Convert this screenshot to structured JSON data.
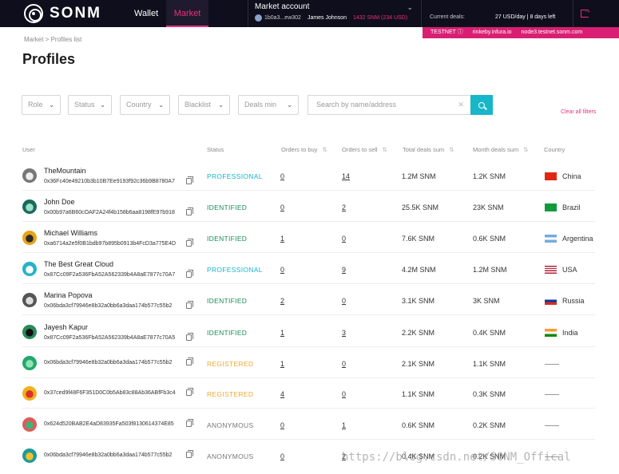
{
  "header": {
    "brand": "SONM",
    "nav": {
      "wallet": "Wallet",
      "market": "Market"
    },
    "account": {
      "title": "Market account",
      "address": "1b0a3...ew302",
      "name": "James Johnson",
      "balance": "1432 SNM (234 USD)"
    },
    "deals_label": "Current deals:",
    "deals_value": "27 USD/day  |  8 days left"
  },
  "testnet": {
    "label": "TESTNET ⓘ",
    "host1": "rinkeby.infura.io",
    "host2": "node3.testnet.sonm.com"
  },
  "breadcrumb": "Market  >  Profiles list",
  "page_title": "Profiles",
  "filters": {
    "role": "Role",
    "status": "Status",
    "country": "Country",
    "blacklist": "Blacklist",
    "deals_min": "Deals min",
    "search_placeholder": "Search by name/address",
    "clear_all": "Clear all filters"
  },
  "columns": {
    "user": "User",
    "status": "Status",
    "orders_buy": "Orders to buy",
    "orders_sell": "Orders to sell",
    "total_deals": "Total deals sum",
    "month_deals": "Month deals sum",
    "country": "Country"
  },
  "colors": {
    "accent": "#e8317a",
    "professional": "#17b6c9",
    "identified": "#1a8a5a",
    "registered": "#f0a830",
    "anonymous": "#777777"
  },
  "rows": [
    {
      "name": "TheMountain",
      "address": "0x36Fc40e49210b3b10B7Ee9193f92c36b9B8780A7",
      "status": "PROFESSIONAL",
      "orders_buy": "0",
      "orders_sell": "14",
      "total": "1.2M SNM",
      "month": "1.2K SNM",
      "country": "China",
      "flag": "china-flag-icon"
    },
    {
      "name": "John Doe",
      "address": "0x00b97a6B60cOAF2A24f4b158b6aa8198fE97b918",
      "status": "IDENTIFIED",
      "orders_buy": "0",
      "orders_sell": "2",
      "total": "25.5K SNM",
      "month": "23K SNM",
      "country": "Brazil",
      "flag": "brazil-flag-icon"
    },
    {
      "name": "Michael Williams",
      "address": "0xa6714a2e5f0B1bdb97b895b0913b4FcD3a775E4D",
      "status": "IDENTIFIED",
      "orders_buy": "1",
      "orders_sell": "0",
      "total": "7.6K SNM",
      "month": "0.6K SNM",
      "country": "Argentina",
      "flag": "argentina-flag-icon"
    },
    {
      "name": "The Best Great Cloud",
      "address": "0x87Cc09F2a536FbA52A562339b4A8aE7877c70A7",
      "status": "PROFESSIONAL",
      "orders_buy": "0",
      "orders_sell": "9",
      "total": "4.2M SNM",
      "month": "1.2M SNM",
      "country": "USA",
      "flag": "usa-flag-icon"
    },
    {
      "name": "Marina Popova",
      "address": "0x06bda3cf79946e8b32a0bb6a3daa174b577c55b2",
      "status": "IDENTIFIED",
      "orders_buy": "2",
      "orders_sell": "0",
      "total": "3.1K SNM",
      "month": "3K SNM",
      "country": "Russia",
      "flag": "russia-flag-icon"
    },
    {
      "name": "Jayesh Kapur",
      "address": "0x87Cc09F2a536FbA52A562339b4A8aE7877c70A5",
      "status": "IDENTIFIED",
      "orders_buy": "1",
      "orders_sell": "3",
      "total": "2.2K SNM",
      "month": "0.4K SNM",
      "country": "India",
      "flag": "india-flag-icon"
    },
    {
      "name": "",
      "address": "0x06bda3cf79946e8b32a0bb6a3daa174b577c55b2",
      "status": "REGISTERED",
      "orders_buy": "1",
      "orders_sell": "0",
      "total": "2.1K SNM",
      "month": "1.1K SNM",
      "country": "",
      "flag": ""
    },
    {
      "name": "",
      "address": "0x37ced9f48F6F351D0C0b5Ab83c88Ab36ABfFb3c4",
      "status": "REGISTERED",
      "orders_buy": "4",
      "orders_sell": "0",
      "total": "1.1K SNM",
      "month": "0.3K SNM",
      "country": "",
      "flag": ""
    },
    {
      "name": "",
      "address": "0x624d520BAB2E4aD83935Fa503f8130614374E85",
      "status": "ANONYMOUS",
      "orders_buy": "0",
      "orders_sell": "1",
      "total": "0.6K SNM",
      "month": "0.2K SNM",
      "country": "",
      "flag": ""
    },
    {
      "name": "",
      "address": "0x06bda3cf79946e8b32a0bb6a3daa174b577c55b2",
      "status": "ANONYMOUS",
      "orders_buy": "0",
      "orders_sell": "2",
      "total": "0.4K SNM",
      "month": "0.2K SNM",
      "country": "",
      "flag": ""
    }
  ],
  "watermark": "https://blog.csdn.net/SONM_Offical"
}
